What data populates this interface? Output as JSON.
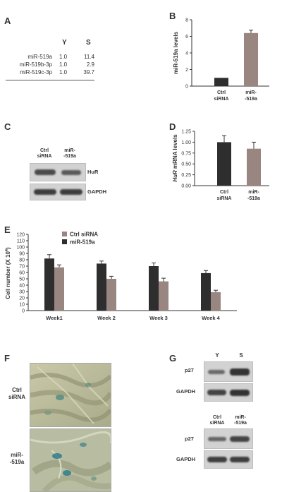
{
  "panels": {
    "a": {
      "label": "A",
      "columns": [
        "Y",
        "S"
      ],
      "rows": [
        {
          "name": "miR-519a",
          "y": "1.0",
          "s": "11.4"
        },
        {
          "name": "miR-519b-3p",
          "y": "1.0",
          "s": "2.9"
        },
        {
          "name": "miR-519c-3p",
          "y": "1.0",
          "s": "39.7"
        }
      ]
    },
    "b": {
      "label": "B"
    },
    "c": {
      "label": "C",
      "lanes": [
        {
          "l1": "Ctrl",
          "l2": "siRNA"
        },
        {
          "l1": "miR-",
          "l2": "-519a"
        }
      ],
      "bands": [
        "HuR",
        "GAPDH"
      ]
    },
    "d": {
      "label": "D"
    },
    "e": {
      "label": "E"
    },
    "f": {
      "label": "F",
      "rows": [
        {
          "l1": "Ctrl",
          "l2": "siRNA"
        },
        {
          "l1": "miR-",
          "l2": "-519a"
        }
      ]
    },
    "g": {
      "label": "G",
      "top_lanes": [
        "Y",
        "S"
      ],
      "bottom_lanes": [
        {
          "l1": "Ctrl",
          "l2": "siRNA"
        },
        {
          "l1": "miR-",
          "l2": "-519a"
        }
      ],
      "bands_top": [
        "p27",
        "GAPDH"
      ],
      "bands_bottom": [
        "p27",
        "GAPDH"
      ]
    }
  },
  "chart_data": [
    {
      "id": "B",
      "type": "bar",
      "categories": [
        [
          "Ctrl",
          "siRNA"
        ],
        [
          "miR-",
          "-519a"
        ]
      ],
      "values": [
        1.0,
        6.4
      ],
      "errors": [
        0,
        0.35
      ],
      "ylabel": "miR-519a levels",
      "ylim": [
        0,
        8
      ],
      "yticks": [
        "0",
        "2",
        "4",
        "6",
        "8"
      ],
      "colors": [
        "#2e2e2e",
        "#9a8680"
      ]
    },
    {
      "id": "D",
      "type": "bar",
      "categories": [
        [
          "Ctrl",
          "siRNA"
        ],
        [
          "miR-",
          "-519a"
        ]
      ],
      "values": [
        1.0,
        0.85
      ],
      "errors": [
        0.15,
        0.15
      ],
      "ylabel_italic": "HuR",
      "ylabel_rest": " mRNA levels",
      "ylim": [
        0,
        1.25
      ],
      "yticks": [
        "0.00",
        "0.25",
        "0.50",
        "0.75",
        "1.00",
        "1.25"
      ],
      "colors": [
        "#2e2e2e",
        "#9a8680"
      ]
    },
    {
      "id": "E",
      "type": "bar",
      "categories": [
        "Week1",
        "Week 2",
        "Week 3",
        "Week 4"
      ],
      "series": [
        {
          "name": "miR-519a",
          "values": [
            82,
            74,
            70,
            59
          ],
          "errors": [
            6,
            4,
            5,
            4
          ],
          "color": "#2e2e2e"
        },
        {
          "name": "Ctrl siRNA",
          "values": [
            68,
            50,
            46,
            29
          ],
          "errors": [
            4,
            4,
            5,
            3
          ],
          "color": "#9a8680"
        }
      ],
      "legend": [
        {
          "name": "Ctrl siRNA",
          "color": "#9a8680"
        },
        {
          "name": "miR-519a",
          "color": "#2e2e2e"
        }
      ],
      "ylabel": "Cell number (X 10",
      "ylabel_sup": "4",
      "ylabel_end": ")",
      "ylim": [
        0,
        120
      ],
      "yticks": [
        "0",
        "10",
        "20",
        "30",
        "40",
        "50",
        "60",
        "70",
        "80",
        "90",
        "100",
        "110",
        "120"
      ]
    }
  ]
}
